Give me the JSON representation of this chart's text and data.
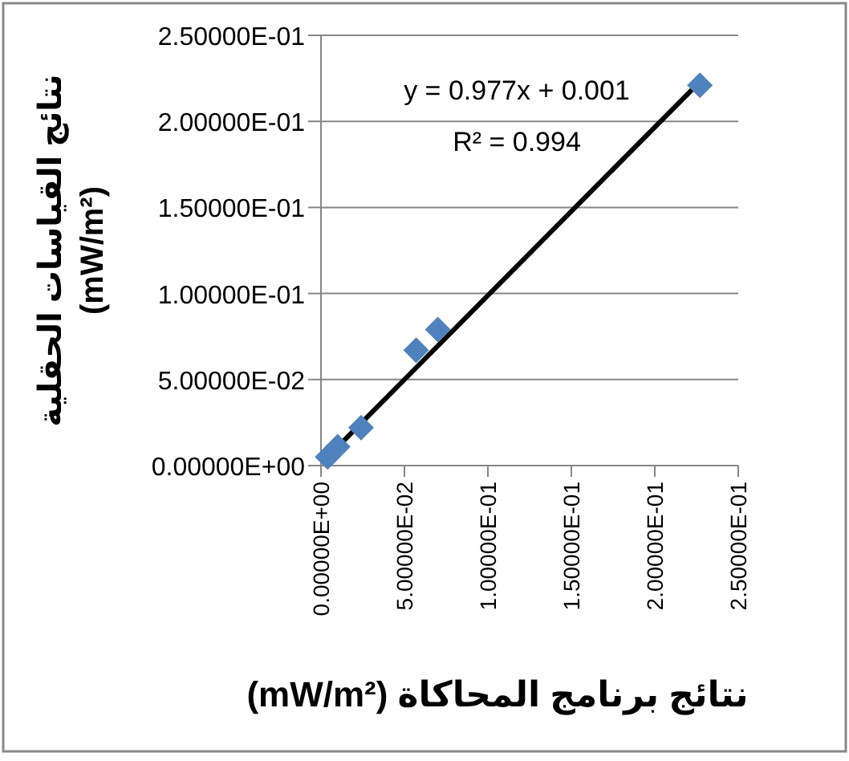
{
  "chart_data": {
    "type": "scatter",
    "xlabel": "نتائج برنامج المحاكاة (mW/m²)",
    "ylabel": "نتائج القياسات الحقلية (mW/m²)",
    "annotations": [
      "y = 0.977x + 0.001",
      "R² = 0.994"
    ],
    "xlim": [
      0,
      0.25
    ],
    "ylim": [
      0,
      0.25
    ],
    "xticks": [
      {
        "value": 0,
        "label": "0.00000E+00"
      },
      {
        "value": 0.05,
        "label": "5.00000E-02"
      },
      {
        "value": 0.1,
        "label": "1.00000E-01"
      },
      {
        "value": 0.15,
        "label": "1.50000E-01"
      },
      {
        "value": 0.2,
        "label": "2.00000E-01"
      },
      {
        "value": 0.25,
        "label": "2.50000E-01"
      }
    ],
    "yticks": [
      {
        "value": 0,
        "label": "0.00000E+00"
      },
      {
        "value": 0.05,
        "label": "5.00000E-02"
      },
      {
        "value": 0.1,
        "label": "1.00000E-01"
      },
      {
        "value": 0.15,
        "label": "1.50000E-01"
      },
      {
        "value": 0.2,
        "label": "2.00000E-01"
      },
      {
        "value": 0.25,
        "label": "2.50000E-01"
      }
    ],
    "grid": "y",
    "series": [
      {
        "color": "#4f81bd",
        "marker": "diamond",
        "x": [
          0.004,
          0.01,
          0.024,
          0.057,
          0.07,
          0.227
        ],
        "values": [
          0.005,
          0.011,
          0.022,
          0.067,
          0.079,
          0.221
        ]
      },
      {
        "type": "line",
        "color": "#000000",
        "marker": "none",
        "x": [
          0.005,
          0.227
        ],
        "values": [
          0.006,
          0.223
        ]
      }
    ]
  }
}
